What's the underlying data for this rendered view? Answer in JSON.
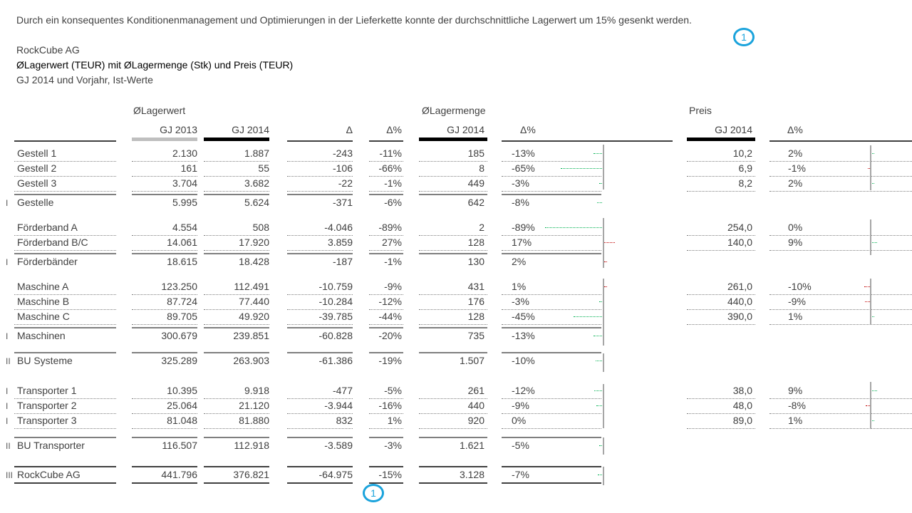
{
  "intro_text": "Durch ein konsequentes Konditionenmanagement und Optimierungen in der Lieferkette konnte der durchschnittliche Lagerwert um 15% gesenkt werden.",
  "company": "RockCube AG",
  "title": "ØLagerwert (TEUR) mit ØLagermenge (Stk) und Preis (TEUR)",
  "subtitle": "GJ 2014 und Vorjahr, Ist-Werte",
  "badge_label": "1",
  "groups": {
    "lagerwert": "ØLagerwert",
    "lagermenge": "ØLagermenge",
    "preis": "Preis"
  },
  "columns": {
    "lw_prev": "GJ 2013",
    "lw_cur": "GJ 2014",
    "delta": "Δ",
    "delta_pct": "Δ%",
    "lm_cur": "GJ 2014",
    "lm_delta_pct": "Δ%",
    "p_cur": "GJ 2014",
    "p_delta_pct": "Δ%"
  },
  "rows": [
    {
      "marker": "",
      "label": "Gestell 1",
      "lw_prev": "2.130",
      "lw_cur": "1.887",
      "delta": "-243",
      "delta_pct": "-11%",
      "lm": "185",
      "lm_pct": "-13%",
      "lm_pct_val": -13,
      "p": "10,2",
      "p_pct": "2%",
      "p_pct_val": 2
    },
    {
      "marker": "",
      "label": "Gestell 2",
      "lw_prev": "161",
      "lw_cur": "55",
      "delta": "-106",
      "delta_pct": "-66%",
      "lm": "8",
      "lm_pct": "-65%",
      "lm_pct_val": -65,
      "p": "6,9",
      "p_pct": "-1%",
      "p_pct_val": -1
    },
    {
      "marker": "",
      "label": "Gestell 3",
      "lw_prev": "3.704",
      "lw_cur": "3.682",
      "delta": "-22",
      "delta_pct": "-1%",
      "lm": "449",
      "lm_pct": "-3%",
      "lm_pct_val": -3,
      "p": "8,2",
      "p_pct": "2%",
      "p_pct_val": 2
    },
    {
      "marker": "I",
      "label": "Gestelle",
      "lw_prev": "5.995",
      "lw_cur": "5.624",
      "delta": "-371",
      "delta_pct": "-6%",
      "lm": "642",
      "lm_pct": "-8%",
      "lm_pct_val": -8,
      "p": "",
      "p_pct": "",
      "p_pct_val": null
    },
    {
      "marker": "",
      "label": "Förderband A",
      "lw_prev": "4.554",
      "lw_cur": "508",
      "delta": "-4.046",
      "delta_pct": "-89%",
      "lm": "2",
      "lm_pct": "-89%",
      "lm_pct_val": -89,
      "p": "254,0",
      "p_pct": "0%",
      "p_pct_val": 0
    },
    {
      "marker": "",
      "label": "Förderband B/C",
      "lw_prev": "14.061",
      "lw_cur": "17.920",
      "delta": "3.859",
      "delta_pct": "27%",
      "lm": "128",
      "lm_pct": "17%",
      "lm_pct_val": 17,
      "p": "140,0",
      "p_pct": "9%",
      "p_pct_val": 9
    },
    {
      "marker": "I",
      "label": "Förderbänder",
      "lw_prev": "18.615",
      "lw_cur": "18.428",
      "delta": "-187",
      "delta_pct": "-1%",
      "lm": "130",
      "lm_pct": "2%",
      "lm_pct_val": 2,
      "p": "",
      "p_pct": "",
      "p_pct_val": null
    },
    {
      "marker": "",
      "label": "Maschine A",
      "lw_prev": "123.250",
      "lw_cur": "112.491",
      "delta": "-10.759",
      "delta_pct": "-9%",
      "lm": "431",
      "lm_pct": "1%",
      "lm_pct_val": 1,
      "p": "261,0",
      "p_pct": "-10%",
      "p_pct_val": -10
    },
    {
      "marker": "",
      "label": "Maschine B",
      "lw_prev": "87.724",
      "lw_cur": "77.440",
      "delta": "-10.284",
      "delta_pct": "-12%",
      "lm": "176",
      "lm_pct": "-3%",
      "lm_pct_val": -3,
      "p": "440,0",
      "p_pct": "-9%",
      "p_pct_val": -9
    },
    {
      "marker": "",
      "label": "Maschine C",
      "lw_prev": "89.705",
      "lw_cur": "49.920",
      "delta": "-39.785",
      "delta_pct": "-44%",
      "lm": "128",
      "lm_pct": "-45%",
      "lm_pct_val": -45,
      "p": "390,0",
      "p_pct": "1%",
      "p_pct_val": 1
    },
    {
      "marker": "I",
      "label": "Maschinen",
      "lw_prev": "300.679",
      "lw_cur": "239.851",
      "delta": "-60.828",
      "delta_pct": "-20%",
      "lm": "735",
      "lm_pct": "-13%",
      "lm_pct_val": -13,
      "p": "",
      "p_pct": "",
      "p_pct_val": null
    },
    {
      "marker": "II",
      "label": "BU Systeme",
      "lw_prev": "325.289",
      "lw_cur": "263.903",
      "delta": "-61.386",
      "delta_pct": "-19%",
      "lm": "1.507",
      "lm_pct": "-10%",
      "lm_pct_val": -10,
      "p": "",
      "p_pct": "",
      "p_pct_val": null
    },
    {
      "marker": "I",
      "label": "Transporter 1",
      "lw_prev": "10.395",
      "lw_cur": "9.918",
      "delta": "-477",
      "delta_pct": "-5%",
      "lm": "261",
      "lm_pct": "-12%",
      "lm_pct_val": -12,
      "p": "38,0",
      "p_pct": "9%",
      "p_pct_val": 9
    },
    {
      "marker": "I",
      "label": "Transporter 2",
      "lw_prev": "25.064",
      "lw_cur": "21.120",
      "delta": "-3.944",
      "delta_pct": "-16%",
      "lm": "440",
      "lm_pct": "-9%",
      "lm_pct_val": -9,
      "p": "48,0",
      "p_pct": "-8%",
      "p_pct_val": -8
    },
    {
      "marker": "I",
      "label": "Transporter 3",
      "lw_prev": "81.048",
      "lw_cur": "81.880",
      "delta": "832",
      "delta_pct": "1%",
      "lm": "920",
      "lm_pct": "0%",
      "lm_pct_val": 0,
      "p": "89,0",
      "p_pct": "1%",
      "p_pct_val": 1
    },
    {
      "marker": "II",
      "label": "BU Transporter",
      "lw_prev": "116.507",
      "lw_cur": "112.918",
      "delta": "-3.589",
      "delta_pct": "-3%",
      "lm": "1.621",
      "lm_pct": "-5%",
      "lm_pct_val": -5,
      "p": "",
      "p_pct": "",
      "p_pct_val": null
    },
    {
      "marker": "III",
      "label": "RockCube AG",
      "lw_prev": "441.796",
      "lw_cur": "376.821",
      "delta": "-64.975",
      "delta_pct": "-15%",
      "lm": "3.128",
      "lm_pct": "-7%",
      "lm_pct_val": -7,
      "p": "",
      "p_pct": "",
      "p_pct_val": null
    }
  ],
  "colors": {
    "positive": "#00b050",
    "negative": "#c00000",
    "badge": "#1aa3dc"
  }
}
